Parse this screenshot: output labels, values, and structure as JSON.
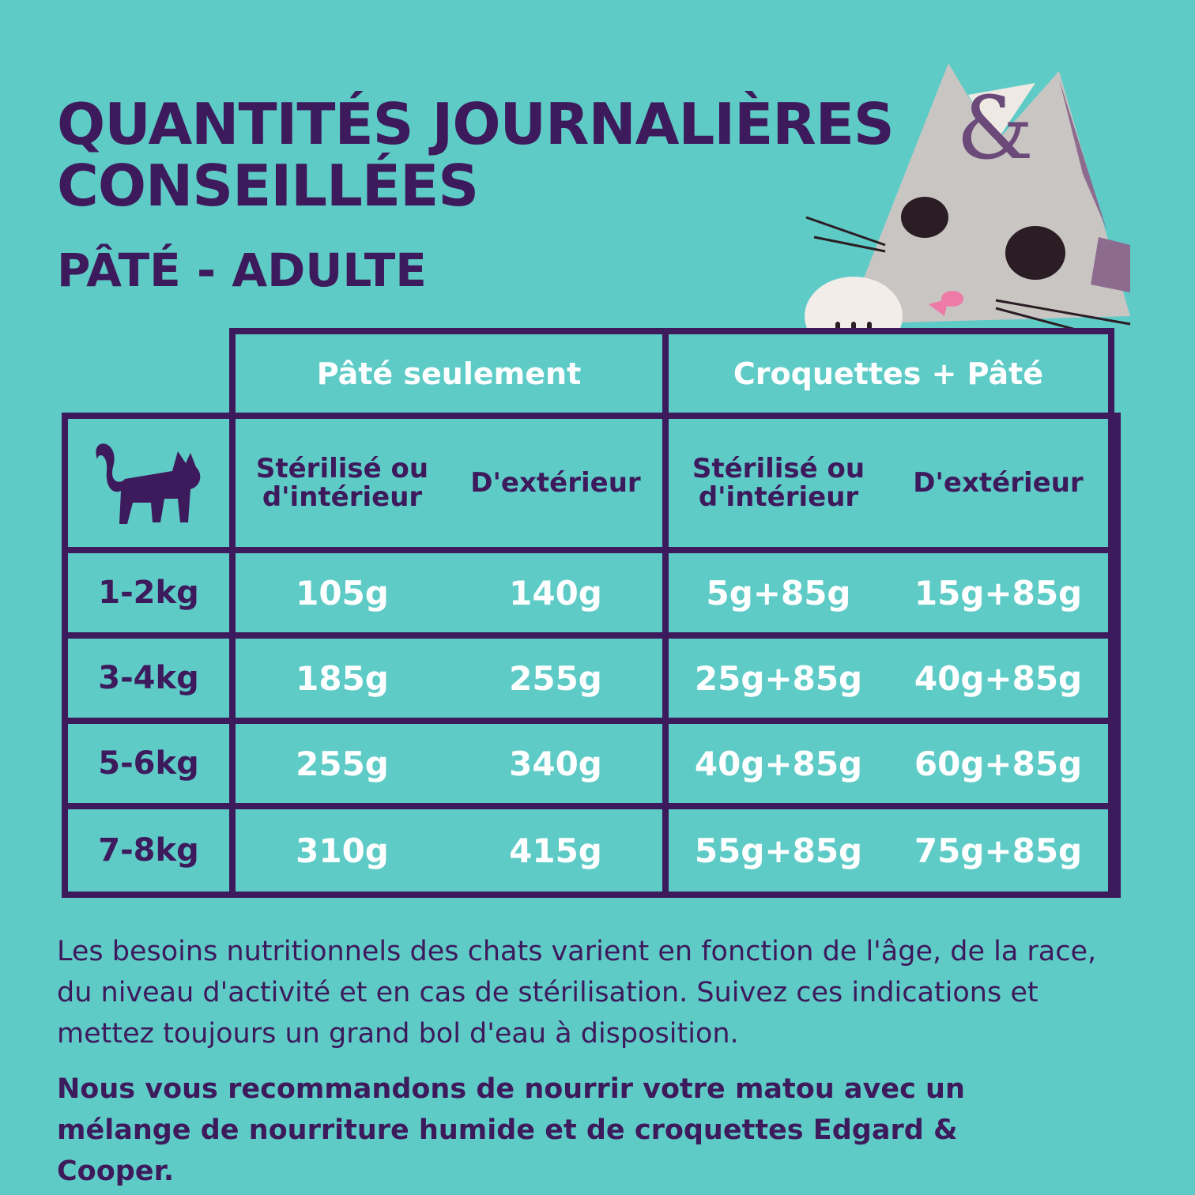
{
  "header": {
    "title_lines": [
      "QUANTITÉS JOURNALIÈRES",
      "CONSEILLÉES"
    ],
    "subtitle": "PÂTÉ - ADULTE"
  },
  "table": {
    "groups": [
      "Pâté seulement",
      "Croquettes + Pâté"
    ],
    "subheaders": [
      "Stérilisé ou d'intérieur",
      "D'extérieur",
      "Stérilisé ou d'intérieur",
      "D'extérieur"
    ],
    "rows": [
      [
        "1-2kg",
        "105g",
        "140g",
        "5g+85g",
        "15g+85g"
      ],
      [
        "3-4kg",
        "185g",
        "255g",
        "25g+85g",
        "40g+85g"
      ],
      [
        "5-6kg",
        "255g",
        "340g",
        "40g+85g",
        "60g+85g"
      ],
      [
        "7-8kg",
        "310g",
        "415g",
        "55g+85g",
        "75g+85g"
      ]
    ]
  },
  "notes": [
    "Les besoins nutritionnels des chats varient en fonction de l'âge, de la race, du niveau d'activité et en cas de stérilisation. Suivez ces indications et mettez toujours un grand bol d'eau à disposition.",
    "Nous vous recommandons de nourrir votre matou avec un mélange de nourriture humide et de croquettes Edgard & Cooper."
  ]
}
